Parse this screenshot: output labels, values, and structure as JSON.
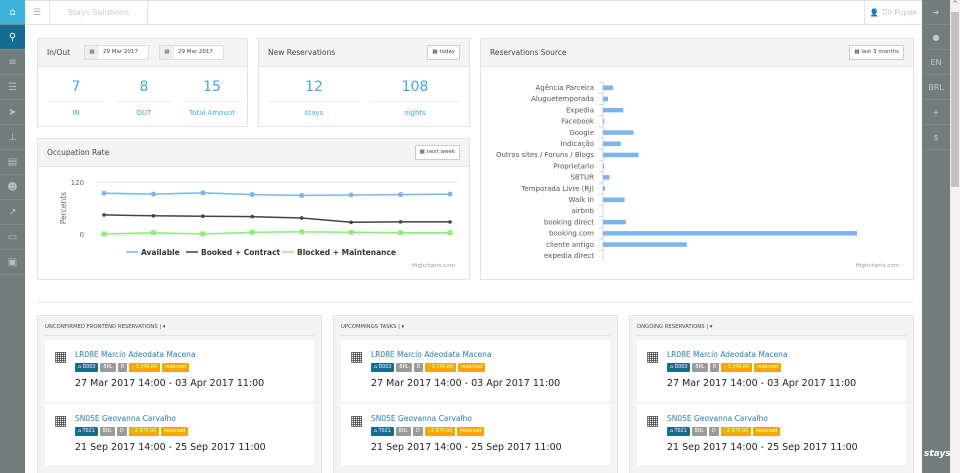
{
  "left_nav": [
    {
      "icon": "home-icon",
      "glyph": "⌂"
    },
    {
      "icon": "search-icon",
      "glyph": "⚲"
    },
    {
      "icon": "database-icon",
      "glyph": "≡"
    },
    {
      "icon": "list-icon",
      "glyph": "☰"
    },
    {
      "icon": "send-icon",
      "glyph": "➤"
    },
    {
      "icon": "sitemap-icon",
      "glyph": "⊥"
    },
    {
      "icon": "card-icon",
      "glyph": "▤"
    },
    {
      "icon": "users-icon",
      "glyph": "☻"
    },
    {
      "icon": "chart-icon",
      "glyph": "↗"
    },
    {
      "icon": "monitor-icon",
      "glyph": "▭"
    },
    {
      "icon": "money-icon",
      "glyph": "▣"
    }
  ],
  "right_nav": [
    {
      "icon": "arrow-right-icon",
      "label": "➔"
    },
    {
      "icon": "user-icon",
      "label": "●"
    },
    {
      "icon": "language",
      "label": "EN"
    },
    {
      "icon": "currency",
      "label": "BRL"
    },
    {
      "icon": "plus-icon",
      "label": "+"
    },
    {
      "icon": "dollar-icon",
      "label": "$"
    }
  ],
  "right_logo": "stays",
  "topbar": {
    "brand": "Stays Solutions",
    "user": "Till Pupak"
  },
  "inout": {
    "title": "In/Out",
    "date_from": "29 Mar 2017",
    "date_to": "29 Mar 2017",
    "stats": [
      {
        "value": "7",
        "label": "IN"
      },
      {
        "value": "8",
        "label": "OUT"
      },
      {
        "value": "15",
        "label": "Total Amount"
      }
    ]
  },
  "new_res": {
    "title": "New Reservations",
    "button": "today",
    "stats": [
      {
        "value": "12",
        "label": "stays"
      },
      {
        "value": "108",
        "label": "nights"
      }
    ]
  },
  "occupation": {
    "title": "Occupation Rate",
    "button": "next week",
    "credit": "Highcharts.com"
  },
  "source": {
    "title": "Reservations Source",
    "button": "last 3 months",
    "credit": "Highcharts.com"
  },
  "chart_data": [
    {
      "type": "line",
      "title": "",
      "ylabel": "Percents",
      "ylim": [
        0,
        120
      ],
      "yticks": [
        "0",
        "120"
      ],
      "legend": "bottom",
      "grid": true,
      "series": [
        {
          "name": "Available",
          "color": "#7cb5ec",
          "values": [
            94,
            92,
            95,
            91,
            89,
            90,
            91,
            92
          ]
        },
        {
          "name": "Booked + Contract",
          "color": "#434348",
          "values": [
            44,
            42,
            41,
            40,
            37,
            27,
            28,
            28
          ]
        },
        {
          "name": "Blocked + Maintenance",
          "color": "#90ed7d",
          "values": [
            0,
            3,
            0,
            4,
            5,
            4,
            3,
            3
          ]
        }
      ]
    },
    {
      "type": "bar",
      "orientation": "horizontal",
      "title": "",
      "color": "#7cb5ec",
      "categories": [
        "Agência Parceira",
        "Aluguetemporada",
        "Expedia",
        "Facebook",
        "Google",
        "Indicação",
        "Outros sites / Foruns / Blogs",
        "Proprietario",
        "SBTUR",
        "Temporada Livre (RJ)",
        "Walk In",
        "airbnb",
        "booking direct",
        "booking.com",
        "cliente antigo",
        "expedia direct"
      ],
      "values": [
        4,
        2,
        8,
        0.5,
        12,
        7,
        14,
        0.5,
        2.6,
        0.8,
        8.5,
        0,
        9,
        100,
        33,
        0
      ]
    }
  ],
  "columns": [
    {
      "title": "UNCONFIRMED FRONTEND RESERVATIONS |",
      "cards": [
        {
          "name": "LR08E Marcio Adeodata Macena",
          "tags": [
            "⌂ D003",
            "BRL",
            "D",
            "- 3,745.00",
            "reserved"
          ],
          "dates": "27 Mar 2017 14:00 - 03 Apr 2017 11:00"
        },
        {
          "name": "SN05E Geovanna Carvalho",
          "tags": [
            "⌂ T021",
            "BRL",
            "D",
            "- 2,970.00",
            "reserved"
          ],
          "dates": "21 Sep 2017 14:00 - 25 Sep 2017 11:00"
        }
      ]
    },
    {
      "title": "UPCOMMINGS TASKS |",
      "cards": [
        {
          "name": "LR08E Marcio Adeodata Macena",
          "tags": [
            "⌂ D003",
            "BRL",
            "D",
            "- 3,745.00",
            "reserved"
          ],
          "dates": "27 Mar 2017 14:00 - 03 Apr 2017 11:00"
        },
        {
          "name": "SN05E Geovanna Carvalho",
          "tags": [
            "⌂ T021",
            "BRL",
            "D",
            "- 2,970.00",
            "reserved"
          ],
          "dates": "21 Sep 2017 14:00 - 25 Sep 2017 11:00"
        }
      ]
    },
    {
      "title": "ONGOING RESERVATIONS |",
      "cards": [
        {
          "name": "LR08E Marcio Adeodata Macena",
          "tags": [
            "⌂ D003",
            "BRL",
            "D",
            "- 3,745.00",
            "reserved"
          ],
          "dates": "27 Mar 2017 14:00 - 03 Apr 2017 11:00"
        },
        {
          "name": "SN05E Geovanna Carvalho",
          "tags": [
            "⌂ T021",
            "BRL",
            "D",
            "- 2,970.00",
            "reserved"
          ],
          "dates": "21 Sep 2017 14:00 - 25 Sep 2017 11:00"
        }
      ]
    }
  ],
  "tag_colors": [
    "#156e92",
    "#9b9b9b",
    "#9b9b9b",
    "#f6a800",
    "#f6a800"
  ]
}
